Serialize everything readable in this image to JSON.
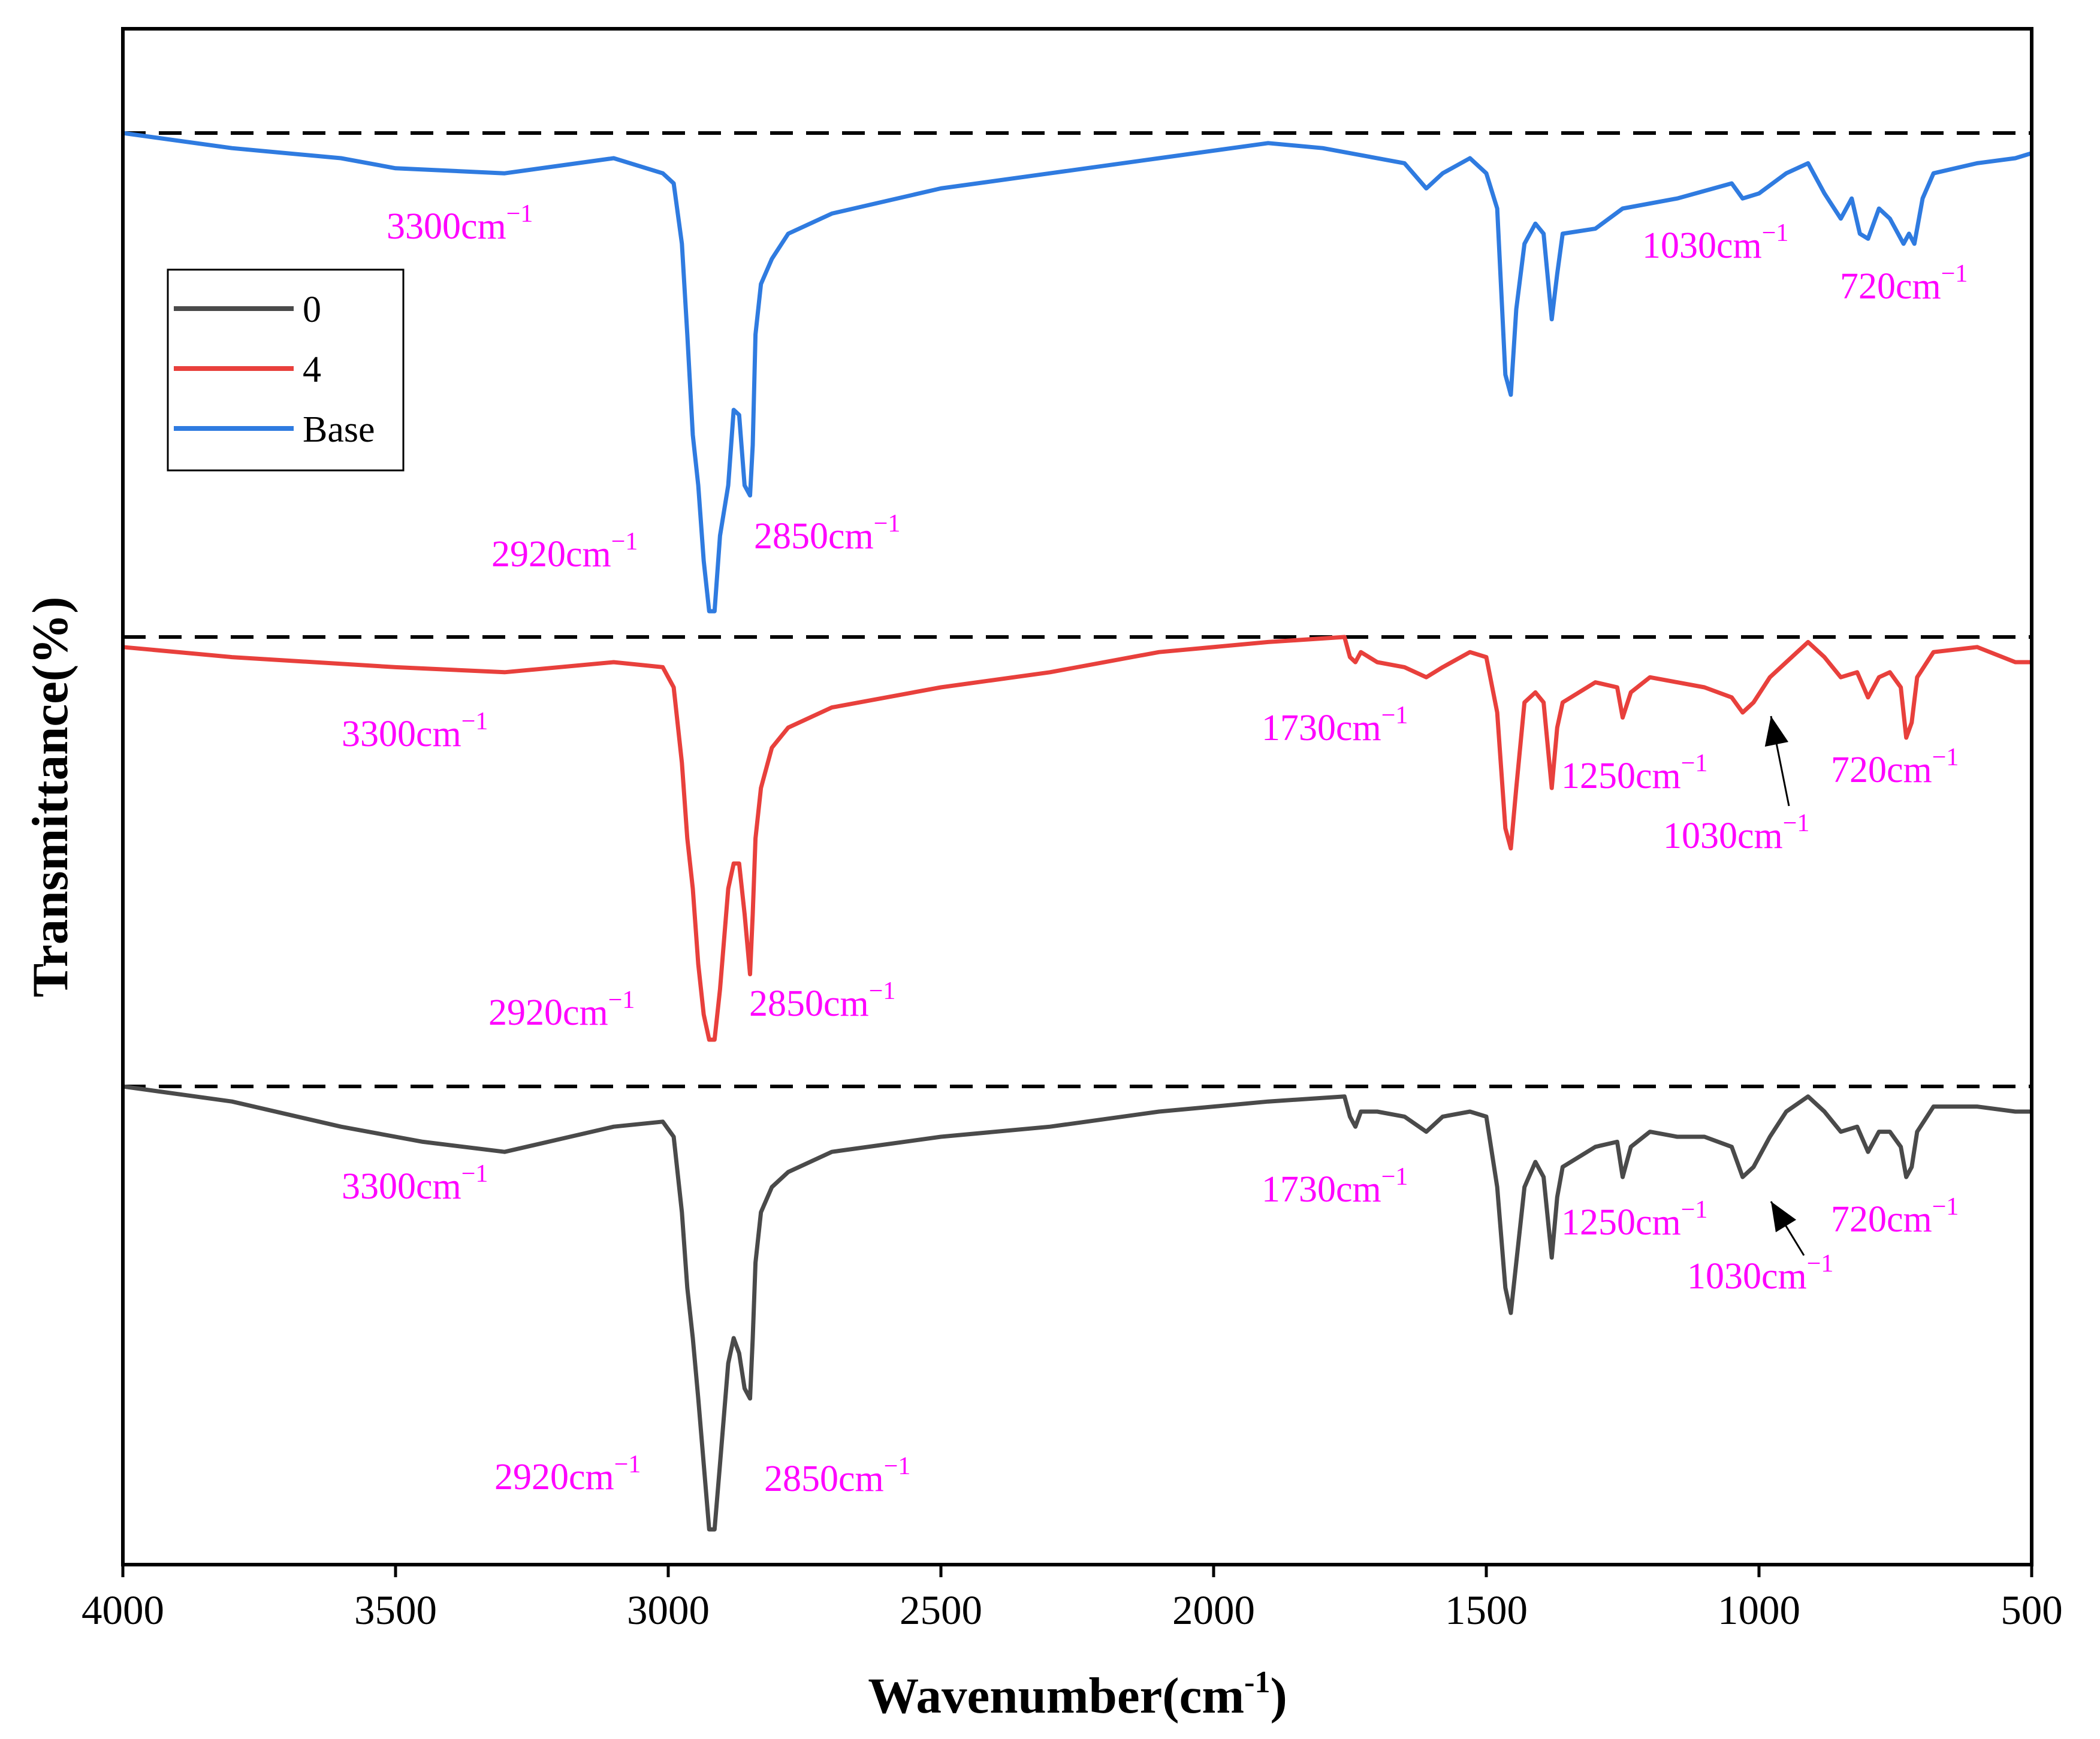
{
  "chart_data": {
    "type": "line",
    "title": "",
    "xlabel_main": "Wavenumber(cm",
    "xlabel_sup": "-1",
    "xlabel_close": ")",
    "ylabel": "Transmittance(%)",
    "xlim": [
      4000,
      500
    ],
    "xticks": [
      4000,
      3500,
      3000,
      2500,
      2000,
      1500,
      1000,
      500
    ],
    "yticks_shown": false,
    "grid": false,
    "legend_position": "top-left",
    "colors": {
      "0": "#4a4a4a",
      "4": "#e8403c",
      "Base": "#2f7be0",
      "annotation": "#ff00ff"
    },
    "series": [
      {
        "name": "Base",
        "offset": 2,
        "points": [
          [
            4000,
            0
          ],
          [
            3800,
            -0.03
          ],
          [
            3600,
            -0.05
          ],
          [
            3500,
            -0.07
          ],
          [
            3300,
            -0.08
          ],
          [
            3100,
            -0.05
          ],
          [
            3010,
            -0.08
          ],
          [
            2990,
            -0.1
          ],
          [
            2975,
            -0.22
          ],
          [
            2965,
            -0.4
          ],
          [
            2955,
            -0.6
          ],
          [
            2945,
            -0.7
          ],
          [
            2935,
            -0.85
          ],
          [
            2925,
            -0.95
          ],
          [
            2915,
            -0.95
          ],
          [
            2905,
            -0.8
          ],
          [
            2890,
            -0.7
          ],
          [
            2880,
            -0.55
          ],
          [
            2870,
            -0.56
          ],
          [
            2860,
            -0.7
          ],
          [
            2850,
            -0.72
          ],
          [
            2845,
            -0.62
          ],
          [
            2840,
            -0.4
          ],
          [
            2830,
            -0.3
          ],
          [
            2810,
            -0.25
          ],
          [
            2780,
            -0.2
          ],
          [
            2700,
            -0.16
          ],
          [
            2500,
            -0.11
          ],
          [
            2300,
            -0.08
          ],
          [
            2100,
            -0.05
          ],
          [
            1900,
            -0.02
          ],
          [
            1800,
            -0.03
          ],
          [
            1650,
            -0.06
          ],
          [
            1610,
            -0.11
          ],
          [
            1580,
            -0.08
          ],
          [
            1530,
            -0.05
          ],
          [
            1500,
            -0.08
          ],
          [
            1480,
            -0.15
          ],
          [
            1465,
            -0.48
          ],
          [
            1455,
            -0.52
          ],
          [
            1445,
            -0.35
          ],
          [
            1430,
            -0.22
          ],
          [
            1410,
            -0.18
          ],
          [
            1395,
            -0.2
          ],
          [
            1380,
            -0.37
          ],
          [
            1370,
            -0.28
          ],
          [
            1360,
            -0.2
          ],
          [
            1300,
            -0.19
          ],
          [
            1250,
            -0.15
          ],
          [
            1150,
            -0.13
          ],
          [
            1050,
            -0.1
          ],
          [
            1030,
            -0.13
          ],
          [
            1000,
            -0.12
          ],
          [
            950,
            -0.08
          ],
          [
            910,
            -0.06
          ],
          [
            880,
            -0.12
          ],
          [
            850,
            -0.17
          ],
          [
            830,
            -0.13
          ],
          [
            815,
            -0.2
          ],
          [
            800,
            -0.21
          ],
          [
            780,
            -0.15
          ],
          [
            760,
            -0.17
          ],
          [
            735,
            -0.22
          ],
          [
            725,
            -0.2
          ],
          [
            715,
            -0.22
          ],
          [
            700,
            -0.13
          ],
          [
            680,
            -0.08
          ],
          [
            600,
            -0.06
          ],
          [
            530,
            -0.05
          ],
          [
            500,
            -0.04
          ]
        ]
      },
      {
        "name": "4",
        "offset": 1,
        "points": [
          [
            4000,
            -0.02
          ],
          [
            3800,
            -0.04
          ],
          [
            3500,
            -0.06
          ],
          [
            3300,
            -0.07
          ],
          [
            3100,
            -0.05
          ],
          [
            3010,
            -0.06
          ],
          [
            2990,
            -0.1
          ],
          [
            2975,
            -0.25
          ],
          [
            2965,
            -0.4
          ],
          [
            2955,
            -0.5
          ],
          [
            2945,
            -0.65
          ],
          [
            2935,
            -0.75
          ],
          [
            2925,
            -0.8
          ],
          [
            2915,
            -0.8
          ],
          [
            2905,
            -0.7
          ],
          [
            2890,
            -0.5
          ],
          [
            2880,
            -0.45
          ],
          [
            2870,
            -0.45
          ],
          [
            2860,
            -0.55
          ],
          [
            2850,
            -0.67
          ],
          [
            2845,
            -0.55
          ],
          [
            2840,
            -0.4
          ],
          [
            2830,
            -0.3
          ],
          [
            2810,
            -0.22
          ],
          [
            2780,
            -0.18
          ],
          [
            2700,
            -0.14
          ],
          [
            2500,
            -0.1
          ],
          [
            2300,
            -0.07
          ],
          [
            2100,
            -0.03
          ],
          [
            1900,
            -0.01
          ],
          [
            1760,
            0
          ],
          [
            1750,
            -0.04
          ],
          [
            1740,
            -0.05
          ],
          [
            1730,
            -0.03
          ],
          [
            1700,
            -0.05
          ],
          [
            1650,
            -0.06
          ],
          [
            1610,
            -0.08
          ],
          [
            1580,
            -0.06
          ],
          [
            1530,
            -0.03
          ],
          [
            1500,
            -0.04
          ],
          [
            1480,
            -0.15
          ],
          [
            1465,
            -0.38
          ],
          [
            1455,
            -0.42
          ],
          [
            1445,
            -0.3
          ],
          [
            1430,
            -0.13
          ],
          [
            1410,
            -0.11
          ],
          [
            1395,
            -0.13
          ],
          [
            1380,
            -0.3
          ],
          [
            1370,
            -0.18
          ],
          [
            1360,
            -0.13
          ],
          [
            1300,
            -0.09
          ],
          [
            1260,
            -0.1
          ],
          [
            1250,
            -0.16
          ],
          [
            1235,
            -0.11
          ],
          [
            1200,
            -0.08
          ],
          [
            1150,
            -0.09
          ],
          [
            1100,
            -0.1
          ],
          [
            1050,
            -0.12
          ],
          [
            1030,
            -0.15
          ],
          [
            1010,
            -0.13
          ],
          [
            980,
            -0.08
          ],
          [
            950,
            -0.05
          ],
          [
            910,
            -0.01
          ],
          [
            880,
            -0.04
          ],
          [
            850,
            -0.08
          ],
          [
            820,
            -0.07
          ],
          [
            800,
            -0.12
          ],
          [
            780,
            -0.08
          ],
          [
            760,
            -0.07
          ],
          [
            740,
            -0.1
          ],
          [
            730,
            -0.2
          ],
          [
            720,
            -0.17
          ],
          [
            710,
            -0.08
          ],
          [
            680,
            -0.03
          ],
          [
            600,
            -0.02
          ],
          [
            530,
            -0.05
          ],
          [
            500,
            -0.05
          ]
        ]
      },
      {
        "name": "0",
        "offset": 0,
        "points": [
          [
            4000,
            0
          ],
          [
            3800,
            -0.03
          ],
          [
            3600,
            -0.08
          ],
          [
            3450,
            -0.11
          ],
          [
            3300,
            -0.13
          ],
          [
            3100,
            -0.08
          ],
          [
            3010,
            -0.07
          ],
          [
            2990,
            -0.1
          ],
          [
            2975,
            -0.25
          ],
          [
            2965,
            -0.4
          ],
          [
            2955,
            -0.5
          ],
          [
            2945,
            -0.62
          ],
          [
            2935,
            -0.75
          ],
          [
            2925,
            -0.88
          ],
          [
            2915,
            -0.88
          ],
          [
            2905,
            -0.75
          ],
          [
            2890,
            -0.55
          ],
          [
            2880,
            -0.5
          ],
          [
            2870,
            -0.53
          ],
          [
            2860,
            -0.6
          ],
          [
            2850,
            -0.62
          ],
          [
            2845,
            -0.5
          ],
          [
            2840,
            -0.35
          ],
          [
            2830,
            -0.25
          ],
          [
            2810,
            -0.2
          ],
          [
            2780,
            -0.17
          ],
          [
            2700,
            -0.13
          ],
          [
            2500,
            -0.1
          ],
          [
            2300,
            -0.08
          ],
          [
            2100,
            -0.05
          ],
          [
            1900,
            -0.03
          ],
          [
            1760,
            -0.02
          ],
          [
            1750,
            -0.06
          ],
          [
            1740,
            -0.08
          ],
          [
            1730,
            -0.05
          ],
          [
            1700,
            -0.05
          ],
          [
            1650,
            -0.06
          ],
          [
            1610,
            -0.09
          ],
          [
            1580,
            -0.06
          ],
          [
            1530,
            -0.05
          ],
          [
            1500,
            -0.06
          ],
          [
            1480,
            -0.2
          ],
          [
            1465,
            -0.4
          ],
          [
            1455,
            -0.45
          ],
          [
            1445,
            -0.35
          ],
          [
            1430,
            -0.2
          ],
          [
            1410,
            -0.15
          ],
          [
            1395,
            -0.18
          ],
          [
            1380,
            -0.34
          ],
          [
            1370,
            -0.22
          ],
          [
            1360,
            -0.16
          ],
          [
            1300,
            -0.12
          ],
          [
            1260,
            -0.11
          ],
          [
            1250,
            -0.18
          ],
          [
            1235,
            -0.12
          ],
          [
            1200,
            -0.09
          ],
          [
            1150,
            -0.1
          ],
          [
            1100,
            -0.1
          ],
          [
            1050,
            -0.12
          ],
          [
            1030,
            -0.18
          ],
          [
            1010,
            -0.16
          ],
          [
            980,
            -0.1
          ],
          [
            950,
            -0.05
          ],
          [
            910,
            -0.02
          ],
          [
            880,
            -0.05
          ],
          [
            850,
            -0.09
          ],
          [
            820,
            -0.08
          ],
          [
            800,
            -0.13
          ],
          [
            780,
            -0.09
          ],
          [
            760,
            -0.09
          ],
          [
            740,
            -0.12
          ],
          [
            730,
            -0.18
          ],
          [
            720,
            -0.16
          ],
          [
            710,
            -0.09
          ],
          [
            680,
            -0.04
          ],
          [
            600,
            -0.04
          ],
          [
            530,
            -0.05
          ],
          [
            500,
            -0.05
          ]
        ]
      }
    ],
    "annotations": {
      "Base": [
        {
          "text": "3300cm",
          "sup": "−1",
          "x": 3300
        },
        {
          "text": "2920cm",
          "sup": "−1",
          "x": 2920
        },
        {
          "text": "2850cm",
          "sup": "−1",
          "x": 2850
        },
        {
          "text": "1030cm",
          "sup": "−1",
          "x": 1030
        },
        {
          "text": "720cm",
          "sup": "−1",
          "x": 720
        }
      ],
      "4": [
        {
          "text": "3300cm",
          "sup": "−1",
          "x": 3300
        },
        {
          "text": "2920cm",
          "sup": "−1",
          "x": 2920
        },
        {
          "text": "2850cm",
          "sup": "−1",
          "x": 2850
        },
        {
          "text": "1730cm",
          "sup": "−1",
          "x": 1730
        },
        {
          "text": "1250cm",
          "sup": "−1",
          "x": 1250
        },
        {
          "text": "1030cm",
          "sup": "−1",
          "x": 1030
        },
        {
          "text": "720cm",
          "sup": "−1",
          "x": 720
        }
      ],
      "0": [
        {
          "text": "3300cm",
          "sup": "−1",
          "x": 3300
        },
        {
          "text": "2920cm",
          "sup": "−1",
          "x": 2920
        },
        {
          "text": "2850cm",
          "sup": "−1",
          "x": 2850
        },
        {
          "text": "1730cm",
          "sup": "−1",
          "x": 1730
        },
        {
          "text": "1250cm",
          "sup": "−1",
          "x": 1250
        },
        {
          "text": "1030cm",
          "sup": "−1",
          "x": 1030
        },
        {
          "text": "720cm",
          "sup": "−1",
          "x": 720
        }
      ]
    },
    "legend": [
      {
        "label": "0",
        "color": "#4a4a4a"
      },
      {
        "label": "4",
        "color": "#e8403c"
      },
      {
        "label": "Base",
        "color": "#2f7be0"
      }
    ]
  }
}
